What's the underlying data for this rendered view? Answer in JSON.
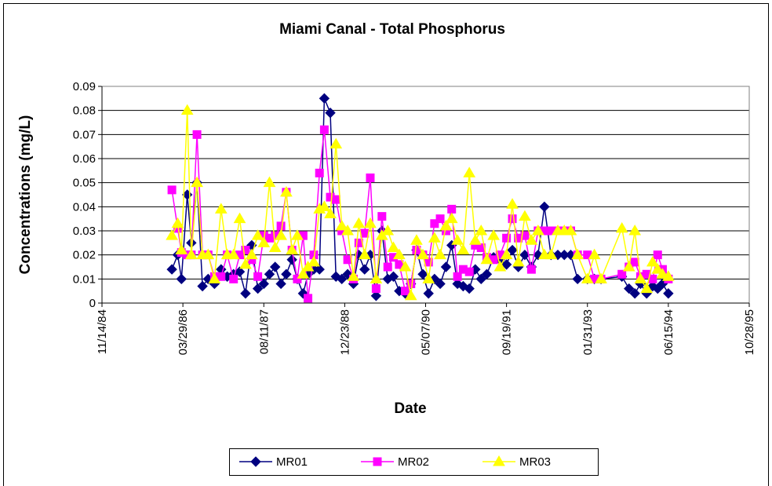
{
  "chart_data": {
    "type": "line",
    "title": "Miami Canal - Total Phosphorus",
    "x_label": "Date",
    "y_label": "Concentrations (mg/L)",
    "x": [
      "01/20/86",
      "02/25/86",
      "03/20/86",
      "04/25/86",
      "05/20/86",
      "06/24/86",
      "07/28/86",
      "09/01/86",
      "10/10/86",
      "11/20/86",
      "12/28/86",
      "02/05/87",
      "03/15/87",
      "04/20/87",
      "05/28/87",
      "07/05/87",
      "08/11/87",
      "09/15/87",
      "10/20/87",
      "11/25/87",
      "12/28/87",
      "02/01/88",
      "03/05/88",
      "04/10/88",
      "05/10/88",
      "06/15/88",
      "07/20/88",
      "08/19/88",
      "09/25/88",
      "10/30/88",
      "12/05/88",
      "01/10/89",
      "02/15/89",
      "03/20/89",
      "04/25/89",
      "05/30/89",
      "07/05/89",
      "08/10/89",
      "09/15/89",
      "10/20/89",
      "11/25/89",
      "01/01/90",
      "02/05/90",
      "03/12/90",
      "04/20/90",
      "05/25/90",
      "07/01/90",
      "08/05/90",
      "09/10/90",
      "10/15/90",
      "11/20/90",
      "12/25/90",
      "02/01/91",
      "03/10/91",
      "04/15/91",
      "05/20/91",
      "07/01/91",
      "08/10/91",
      "09/19/91",
      "10/25/91",
      "12/01/91",
      "01/10/92",
      "02/20/92",
      "04/01/92",
      "05/10/92",
      "06/20/92",
      "08/01/92",
      "09/10/92",
      "10/20/92",
      "12/01/92",
      "01/31/93",
      "03/15/93",
      "04/25/93",
      "09/01/93",
      "10/15/93",
      "11/20/93",
      "12/25/93",
      "02/01/94",
      "03/10/94",
      "04/10/94",
      "05/10/94",
      "06/15/94"
    ],
    "series": [
      {
        "name": "MR01",
        "color": "#000080",
        "marker": "diamond",
        "values": [
          0.014,
          0.02,
          0.01,
          0.045,
          0.025,
          0.05,
          0.007,
          0.01,
          0.008,
          0.014,
          0.011,
          0.012,
          0.013,
          0.004,
          0.024,
          0.006,
          0.008,
          0.012,
          0.015,
          0.008,
          0.012,
          0.018,
          0.01,
          0.004,
          0.012,
          0.014,
          0.014,
          0.085,
          0.079,
          0.011,
          0.01,
          0.012,
          0.008,
          0.02,
          0.014,
          0.02,
          0.003,
          0.03,
          0.01,
          0.011,
          0.005,
          0.004,
          0.008,
          0.022,
          0.012,
          0.004,
          0.01,
          0.008,
          0.015,
          0.024,
          0.008,
          0.007,
          0.006,
          0.014,
          0.01,
          0.012,
          0.019,
          0.018,
          0.016,
          0.022,
          0.015,
          0.02,
          0.015,
          0.02,
          0.04,
          0.02,
          0.02,
          0.02,
          0.02,
          0.01,
          0.01,
          0.01,
          0.01,
          0.011,
          0.006,
          0.004,
          0.008,
          0.004,
          0.007,
          0.006,
          0.008,
          0.004
        ]
      },
      {
        "name": "MR02",
        "color": "#FF00FF",
        "marker": "square",
        "values": [
          0.047,
          0.031,
          0.021,
          0.02,
          0.02,
          0.07,
          0.02,
          0.02,
          0.011,
          0.011,
          0.02,
          0.01,
          0.02,
          0.022,
          0.018,
          0.011,
          0.028,
          0.027,
          0.028,
          0.032,
          0.046,
          0.022,
          0.01,
          0.028,
          0.002,
          0.02,
          0.054,
          0.072,
          0.044,
          0.043,
          0.03,
          0.018,
          0.01,
          0.025,
          0.029,
          0.052,
          0.006,
          0.036,
          0.015,
          0.019,
          0.016,
          0.005,
          0.008,
          0.022,
          0.02,
          0.017,
          0.033,
          0.035,
          0.03,
          0.039,
          0.011,
          0.014,
          0.013,
          0.024,
          0.023,
          0.019,
          0.018,
          0.02,
          0.027,
          0.035,
          0.027,
          0.028,
          0.014,
          0.03,
          0.03,
          0.03,
          0.03,
          0.03,
          0.03,
          0.02,
          0.02,
          0.01,
          0.01,
          0.012,
          0.015,
          0.017,
          0.011,
          0.012,
          0.01,
          0.02,
          0.014,
          0.01
        ]
      },
      {
        "name": "MR03",
        "color": "#FFFF00",
        "marker": "triangle",
        "values": [
          0.028,
          0.033,
          0.022,
          0.08,
          0.02,
          0.05,
          0.02,
          0.02,
          0.01,
          0.039,
          0.02,
          0.02,
          0.035,
          0.016,
          0.02,
          0.028,
          0.025,
          0.05,
          0.023,
          0.028,
          0.046,
          0.022,
          0.028,
          0.012,
          0.015,
          0.017,
          0.039,
          0.04,
          0.037,
          0.066,
          0.032,
          0.03,
          0.011,
          0.033,
          0.02,
          0.033,
          0.01,
          0.028,
          0.03,
          0.023,
          0.02,
          0.015,
          0.003,
          0.026,
          0.02,
          0.01,
          0.027,
          0.02,
          0.032,
          0.035,
          0.026,
          0.022,
          0.054,
          0.026,
          0.03,
          0.018,
          0.028,
          0.015,
          0.02,
          0.041,
          0.017,
          0.036,
          0.026,
          0.03,
          0.02,
          0.02,
          0.03,
          0.03,
          0.03,
          0.02,
          0.01,
          0.02,
          0.01,
          0.031,
          0.015,
          0.03,
          0.01,
          0.006,
          0.017,
          0.014,
          0.012,
          0.011
        ]
      }
    ],
    "xlim": [
      "11/14/84",
      "10/28/95"
    ],
    "xticks": [
      "11/14/84",
      "03/29/86",
      "08/11/87",
      "12/23/88",
      "05/07/90",
      "09/19/91",
      "01/31/93",
      "06/15/94",
      "10/28/95"
    ],
    "ylim": [
      0,
      0.09
    ],
    "yticks": [
      0,
      0.01,
      0.02,
      0.03,
      0.04,
      0.05,
      0.06,
      0.07,
      0.08,
      0.09
    ],
    "grid": true,
    "legend": "bottom"
  }
}
